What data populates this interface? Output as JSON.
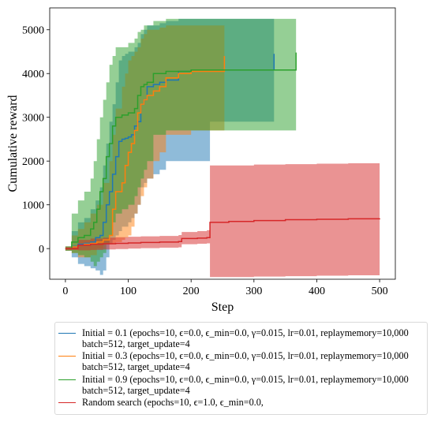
{
  "chart_data": {
    "type": "line",
    "xlabel": "Step",
    "ylabel": "Cumulative reward",
    "xlim": [
      -25,
      525
    ],
    "ylim": [
      -700,
      5500
    ],
    "xticks": [
      0,
      100,
      200,
      300,
      400,
      500
    ],
    "yticks": [
      0,
      1000,
      2000,
      3000,
      4000,
      5000
    ],
    "grid": false,
    "legend_position": "below",
    "series": [
      {
        "name": "Initial = 0.1 (epochs=10, ϵ=0.0, ϵ_min=0.0, γ=0.015, lr=0.01, replaymemory=10,000\nbatch=512, target_update=4",
        "color": "#1f77b4",
        "x": [
          0,
          10,
          20,
          30,
          40,
          48,
          55,
          60,
          65,
          70,
          75,
          80,
          85,
          90,
          95,
          100,
          105,
          110,
          115,
          120,
          125,
          130,
          140,
          150,
          160,
          180,
          200,
          230,
          260,
          290,
          330,
          332
        ],
        "y": [
          0,
          50,
          100,
          120,
          150,
          250,
          300,
          600,
          1000,
          1300,
          1700,
          2100,
          2450,
          2500,
          2520,
          2550,
          2600,
          2800,
          2900,
          3300,
          3400,
          3700,
          3750,
          3800,
          3850,
          4050,
          4080,
          4080,
          4080,
          4080,
          4080,
          4450
        ],
        "upper": [
          50,
          400,
          600,
          700,
          900,
          1100,
          1400,
          1900,
          2400,
          2900,
          3300,
          3800,
          4300,
          4400,
          4450,
          4500,
          4500,
          4600,
          4700,
          4900,
          5000,
          5100,
          5100,
          5150,
          5200,
          5250,
          5250,
          5250,
          5250,
          5250,
          5250,
          5250
        ],
        "lower": [
          -50,
          -200,
          -350,
          -400,
          -450,
          -500,
          -600,
          -500,
          -200,
          100,
          200,
          300,
          400,
          500,
          500,
          600,
          700,
          800,
          1000,
          1400,
          1500,
          1600,
          1700,
          1800,
          2000,
          2000,
          2000,
          2900,
          2900,
          2900,
          2900,
          2900
        ]
      },
      {
        "name": "Initial = 0.3 (epochs=10, ϵ=0.0, ϵ_min=0.0, γ=0.015, lr=0.01, replaymemory=10,000\nbatch=512, target_update=4",
        "color": "#ff7f0e",
        "x": [
          0,
          10,
          20,
          30,
          40,
          50,
          60,
          70,
          75,
          80,
          90,
          95,
          100,
          105,
          110,
          115,
          120,
          125,
          130,
          140,
          150,
          160,
          180,
          200,
          230,
          250,
          253
        ],
        "y": [
          0,
          40,
          80,
          100,
          120,
          150,
          200,
          300,
          900,
          1300,
          1500,
          1900,
          2200,
          2400,
          2700,
          3100,
          3300,
          3400,
          3500,
          3600,
          3700,
          3900,
          4000,
          4050,
          4050,
          4050,
          4400
        ],
        "upper": [
          50,
          300,
          450,
          600,
          800,
          1000,
          1500,
          2000,
          2600,
          3200,
          3700,
          4000,
          4300,
          4400,
          4500,
          4600,
          4800,
          4900,
          5000,
          5000,
          5050,
          5100,
          5100,
          5100,
          5100,
          5100,
          5100
        ],
        "lower": [
          -50,
          -100,
          -200,
          -200,
          -150,
          0,
          100,
          100,
          100,
          150,
          200,
          250,
          300,
          500,
          800,
          1000,
          1200,
          1400,
          1600,
          2000,
          2200,
          2600,
          2600,
          2700,
          2700,
          2700,
          2700
        ]
      },
      {
        "name": "Initial = 0.9 (epochs=10, ϵ=0.0, ϵ_min=0.0, γ=0.015, lr=0.01, replaymemory=10,000\nbatch=512, target_update=4",
        "color": "#2ca02c",
        "x": [
          0,
          10,
          20,
          30,
          40,
          45,
          50,
          55,
          60,
          65,
          70,
          75,
          80,
          90,
          100,
          110,
          115,
          120,
          125,
          130,
          140,
          160,
          180,
          200,
          250,
          300,
          365,
          367
        ],
        "y": [
          0,
          150,
          250,
          300,
          450,
          600,
          900,
          1300,
          1600,
          2100,
          2400,
          2800,
          3000,
          3050,
          3100,
          3200,
          3500,
          3700,
          3750,
          3800,
          4000,
          4050,
          4050,
          4080,
          4080,
          4080,
          4080,
          4480
        ],
        "upper": [
          50,
          800,
          1100,
          1300,
          1600,
          2000,
          2500,
          3000,
          3400,
          3800,
          4200,
          4400,
          4600,
          4600,
          4700,
          4800,
          4950,
          5000,
          5100,
          5100,
          5200,
          5250,
          5250,
          5250,
          5250,
          5250,
          5250,
          5250
        ],
        "lower": [
          -50,
          -100,
          -150,
          -200,
          -300,
          -400,
          -300,
          -200,
          -100,
          100,
          300,
          600,
          800,
          900,
          1000,
          1200,
          1400,
          1600,
          1800,
          2000,
          2600,
          2700,
          2700,
          2700,
          2700,
          2700,
          2700,
          2700
        ]
      },
      {
        "name": "Random search (epochs=10, ϵ=1.0, ϵ_min=0.0,",
        "color": "#d62728",
        "x": [
          0,
          20,
          40,
          60,
          80,
          100,
          120,
          150,
          180,
          185,
          210,
          225,
          230,
          260,
          300,
          350,
          400,
          450,
          500
        ],
        "y": [
          0,
          80,
          100,
          110,
          120,
          130,
          140,
          150,
          160,
          230,
          240,
          250,
          600,
          620,
          640,
          660,
          670,
          680,
          690
        ],
        "upper": [
          30,
          200,
          230,
          250,
          260,
          270,
          280,
          290,
          310,
          380,
          400,
          420,
          1900,
          1900,
          1920,
          1930,
          1940,
          1950,
          1950
        ],
        "lower": [
          -30,
          -40,
          -30,
          -20,
          -10,
          0,
          10,
          20,
          30,
          100,
          110,
          120,
          -650,
          -650,
          -640,
          -630,
          -620,
          -610,
          -600
        ]
      }
    ]
  }
}
